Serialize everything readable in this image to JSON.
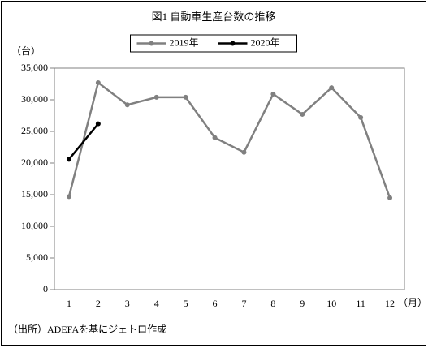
{
  "chart_data": {
    "type": "line",
    "title": "図1 自動車生産台数の推移",
    "y_label": "（台）",
    "x_label": "（月）",
    "source": "（出所）ADEFAを基にジェトロ作成",
    "categories": [
      "1",
      "2",
      "3",
      "4",
      "5",
      "6",
      "7",
      "8",
      "9",
      "10",
      "11",
      "12"
    ],
    "series": [
      {
        "name": "2019年",
        "color": "#808080",
        "values": [
          14700,
          32700,
          29200,
          30400,
          30400,
          24000,
          21700,
          30900,
          27700,
          31900,
          27200,
          14500
        ]
      },
      {
        "name": "2020年",
        "color": "#000000",
        "values": [
          20600,
          26200,
          null,
          null,
          null,
          null,
          null,
          null,
          null,
          null,
          null,
          null
        ]
      }
    ],
    "ylim": [
      0,
      35000
    ],
    "yticks": [
      0,
      {
        "value": 5000,
        "label": "5,000"
      },
      {
        "value": 10000,
        "label": "10,000"
      },
      {
        "value": 15000,
        "label": "15,000"
      },
      {
        "value": 20000,
        "label": "20,000"
      },
      {
        "value": 25000,
        "label": "25,000"
      },
      {
        "value": 30000,
        "label": "30,000"
      },
      {
        "value": 35000,
        "label": "35,000"
      }
    ],
    "grid": false,
    "legend": "top"
  }
}
